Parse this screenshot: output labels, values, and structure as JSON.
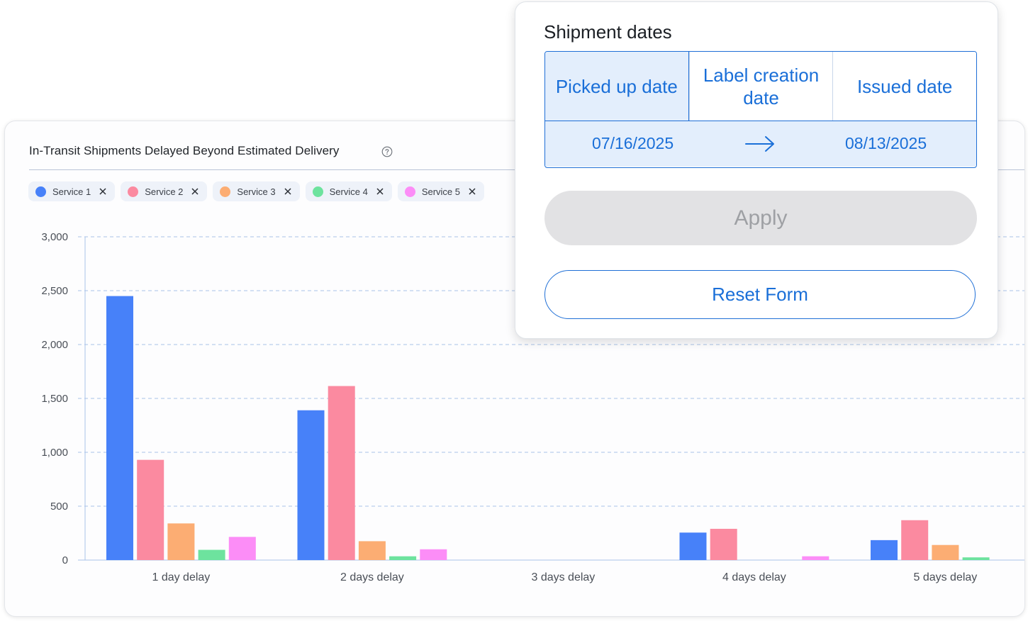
{
  "card": {
    "title": "In-Transit Shipments Delayed Beyond Estimated Delivery"
  },
  "legend": [
    {
      "label": "Service 1",
      "color": "#4781f9"
    },
    {
      "label": "Service 2",
      "color": "#fb8aa0"
    },
    {
      "label": "Service 3",
      "color": "#fcad73"
    },
    {
      "label": "Service 4",
      "color": "#6de39e"
    },
    {
      "label": "Service 5",
      "color": "#fc8df7"
    }
  ],
  "popover": {
    "title": "Shipment dates",
    "tabs": [
      {
        "label": "Picked up date",
        "active": true
      },
      {
        "label": "Label creation date",
        "active": false
      },
      {
        "label": "Issued date",
        "active": false
      }
    ],
    "start_date": "07/16/2025",
    "end_date": "08/13/2025",
    "apply_label": "Apply",
    "reset_label": "Reset Form"
  },
  "chart_data": {
    "type": "bar",
    "categories": [
      "1 day delay",
      "2 days delay",
      "3 days delay",
      "4 days delay",
      "5 days delay"
    ],
    "series": [
      {
        "name": "Service 1",
        "color": "#4781f9",
        "values": [
          2450,
          1390,
          0,
          255,
          185
        ]
      },
      {
        "name": "Service 2",
        "color": "#fb8aa0",
        "values": [
          930,
          1615,
          0,
          290,
          370
        ]
      },
      {
        "name": "Service 3",
        "color": "#fcad73",
        "values": [
          340,
          175,
          0,
          0,
          140
        ]
      },
      {
        "name": "Service 4",
        "color": "#6de39e",
        "values": [
          95,
          35,
          0,
          0,
          25
        ]
      },
      {
        "name": "Service 5",
        "color": "#fc8df7",
        "values": [
          215,
          100,
          0,
          35,
          0
        ]
      }
    ],
    "y_ticks": [
      "0",
      "500",
      "1,000",
      "1,500",
      "2,000",
      "2,500",
      "3,000"
    ],
    "ylim": [
      0,
      3000
    ],
    "grid": true,
    "xlabel": "",
    "ylabel": ""
  }
}
